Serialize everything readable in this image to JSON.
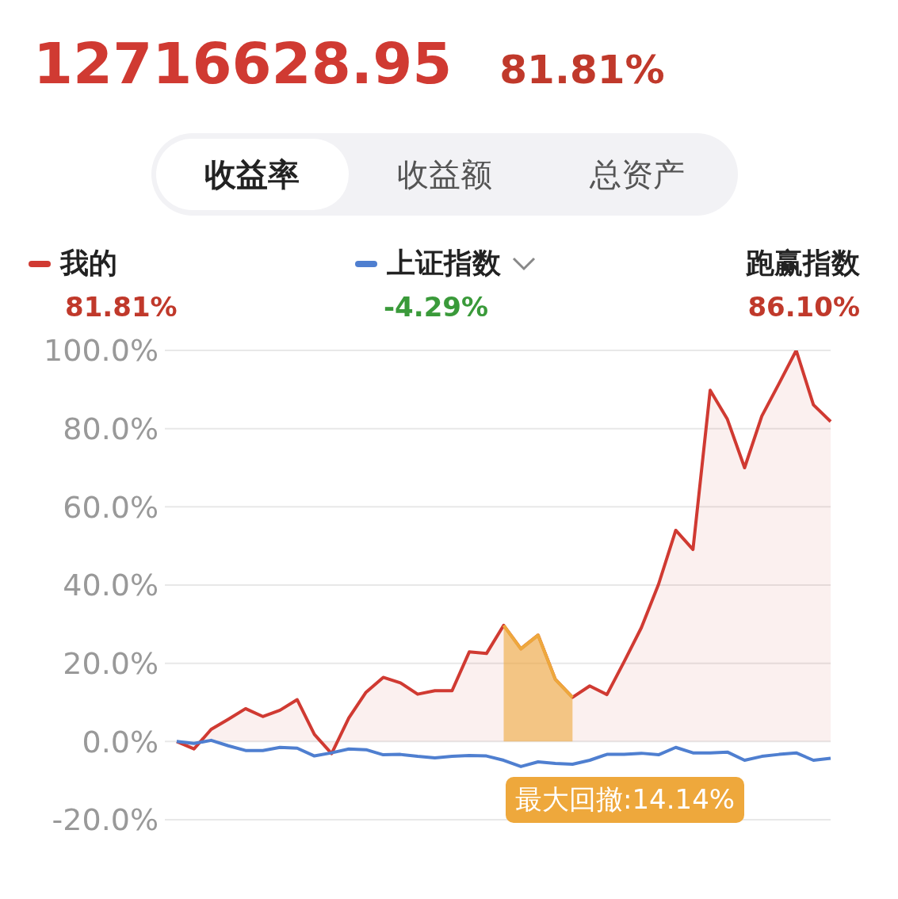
{
  "chart_data": {
    "type": "area",
    "title": "12716628.95",
    "subtitle": "81.81%",
    "categories": [
      null,
      null,
      null,
      null,
      null,
      null,
      null,
      null,
      null,
      null,
      null,
      null,
      null,
      null,
      null,
      null,
      null,
      null,
      null,
      null,
      null,
      null,
      null,
      null,
      null,
      null,
      null,
      null,
      null,
      null,
      null,
      null,
      null,
      null,
      null,
      null,
      null,
      null,
      null
    ],
    "series": [
      {
        "name": "我的",
        "color": "#d03a32",
        "values": [
          0,
          -1.9,
          3.1,
          5.7,
          8.4,
          6.4,
          8.0,
          10.7,
          1.8,
          -3.1,
          6.0,
          12.6,
          16.4,
          15.0,
          12.1,
          13.0,
          13.0,
          22.9,
          22.5,
          29.7,
          23.7,
          27.2,
          15.9,
          11.3,
          14.2,
          12.0,
          20.4,
          29.1,
          40.2,
          54.0,
          49.1,
          89.8,
          82.4,
          70.0,
          83.2,
          91.5,
          100,
          86.1,
          81.8
        ]
      },
      {
        "name": "上证指数",
        "type": "line",
        "color": "#4f7fd0",
        "values": [
          0,
          -0.5,
          0.3,
          -1.1,
          -2.3,
          -2.3,
          -1.5,
          -1.7,
          -3.7,
          -2.9,
          -1.9,
          -2.1,
          -3.4,
          -3.3,
          -3.8,
          -4.2,
          -3.8,
          -3.6,
          -3.7,
          -4.8,
          -6.4,
          -5.2,
          -5.6,
          -5.8,
          -4.8,
          -3.3,
          -3.3,
          -3.0,
          -3.4,
          -1.5,
          -2.9,
          -2.9,
          -2.7,
          -4.8,
          -3.8,
          -3.3,
          -2.9,
          -4.8,
          -4.3
        ]
      },
      {
        "color": "#eea83c",
        "values": [
          null,
          null,
          null,
          null,
          null,
          null,
          null,
          null,
          null,
          null,
          null,
          null,
          null,
          null,
          null,
          null,
          null,
          null,
          null,
          29.7,
          23.7,
          27.2,
          15.9,
          11.3,
          null,
          null,
          null,
          null,
          null,
          null,
          null,
          null,
          null,
          null,
          null,
          null,
          null,
          null,
          null
        ]
      }
    ],
    "ylim": [
      -20,
      100
    ],
    "yticks": [
      {
        "value": -20,
        "label": "-20.0%"
      },
      {
        "value": 0,
        "label": "0.0%"
      },
      {
        "value": 20,
        "label": "20.0%"
      },
      {
        "value": 40,
        "label": "40.0%"
      },
      {
        "value": 60,
        "label": "60.0%"
      },
      {
        "value": 80,
        "label": "80.0%"
      },
      {
        "value": 100,
        "label": "100.0%"
      }
    ],
    "grid": "y",
    "legend": "top",
    "marker": "none",
    "line_style": "solid",
    "tick_labels": "y",
    "annotations": [
      "收益率",
      "收益额",
      "总资产",
      "81.81%",
      "-4.29%",
      "跑赢指数",
      "86.10%",
      "最大回撤:14.14%"
    ]
  }
}
